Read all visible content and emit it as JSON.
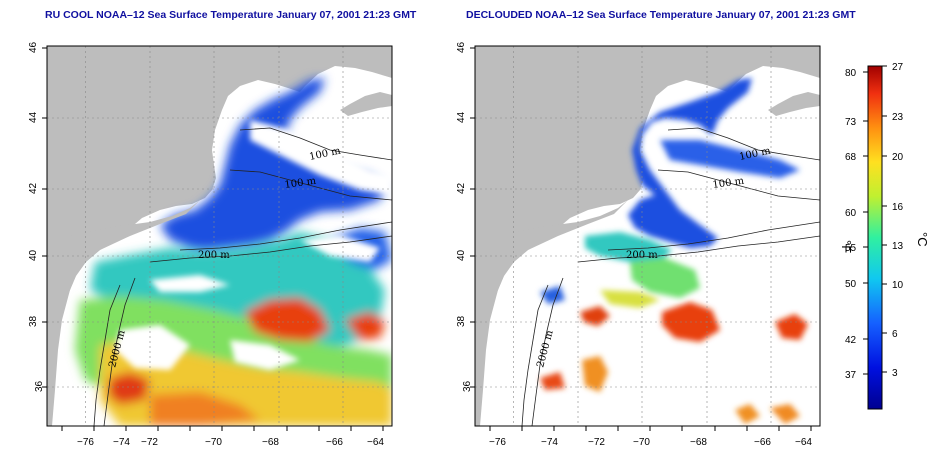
{
  "panels": [
    {
      "title": "RU COOL NOAA–12 Sea Surface Temperature January 07, 2001 21:23 GMT",
      "contour_labels": [
        "100 m",
        "100 m",
        "200 m",
        "2000 m"
      ]
    },
    {
      "title": "DECLOUDED NOAA–12 Sea Surface Temperature January 07, 2001 21:23 GMT",
      "contour_labels": [
        "100 m",
        "100 m",
        "200 m",
        "2000 m"
      ]
    }
  ],
  "axes": {
    "x_ticks": [
      "−76",
      "−74",
      "−72",
      "−70",
      "−68",
      "−66",
      "−64"
    ],
    "y_ticks": [
      "36",
      "38",
      "40",
      "42",
      "44",
      "46"
    ]
  },
  "colorbar": {
    "fahrenheit_ticks": [
      "80",
      "73",
      "68",
      "60",
      "55",
      "50",
      "42",
      "37"
    ],
    "celsius_ticks": [
      "27",
      "23",
      "20",
      "16",
      "13",
      "10",
      "6",
      "3"
    ],
    "fahrenheit_label": "°F",
    "celsius_label": "°C"
  },
  "colors": {
    "land": "#bdbdbd",
    "title": "#1010a0",
    "cold": "#1a3cd8",
    "mid": "#22cc88",
    "warm": "#e84010"
  }
}
